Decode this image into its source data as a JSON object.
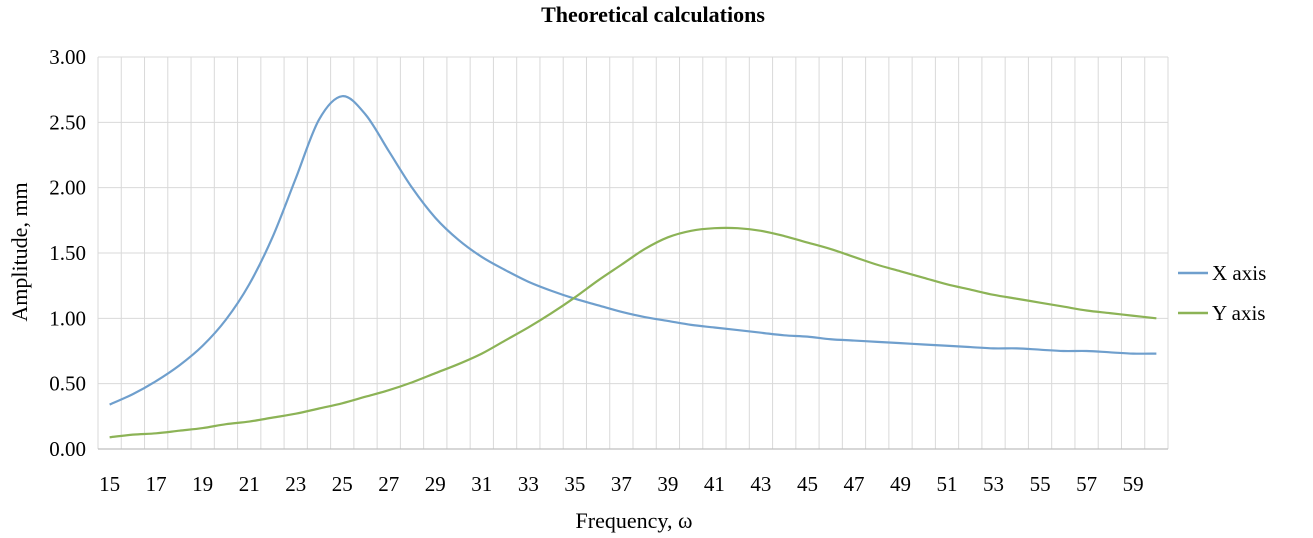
{
  "chart_data": {
    "type": "line",
    "title": "Theoretical calculations",
    "xlabel": "Frequency, ω",
    "ylabel": "Amplitude, mm",
    "xlim": [
      15,
      60
    ],
    "ylim": [
      0,
      3
    ],
    "x_ticks": [
      15,
      17,
      19,
      21,
      23,
      25,
      27,
      29,
      31,
      33,
      35,
      37,
      39,
      41,
      43,
      45,
      47,
      49,
      51,
      53,
      55,
      57,
      59
    ],
    "y_ticks": [
      "0.00",
      "0.50",
      "1.00",
      "1.50",
      "2.00",
      "2.50",
      "3.00"
    ],
    "grid": true,
    "legend_position": "right",
    "x": [
      15,
      16,
      17,
      18,
      19,
      20,
      21,
      22,
      23,
      24,
      25,
      26,
      27,
      28,
      29,
      30,
      31,
      32,
      33,
      34,
      35,
      36,
      37,
      38,
      39,
      40,
      41,
      42,
      43,
      44,
      45,
      46,
      47,
      48,
      49,
      50,
      51,
      52,
      53,
      54,
      55,
      56,
      57,
      58,
      59,
      60
    ],
    "series": [
      {
        "name": "X axis",
        "color": "#6f9fcd",
        "values": [
          0.34,
          0.42,
          0.52,
          0.64,
          0.79,
          0.99,
          1.26,
          1.62,
          2.07,
          2.52,
          2.7,
          2.56,
          2.28,
          2.0,
          1.77,
          1.6,
          1.47,
          1.37,
          1.28,
          1.21,
          1.15,
          1.1,
          1.05,
          1.01,
          0.98,
          0.95,
          0.93,
          0.91,
          0.89,
          0.87,
          0.86,
          0.84,
          0.83,
          0.82,
          0.81,
          0.8,
          0.79,
          0.78,
          0.77,
          0.77,
          0.76,
          0.75,
          0.75,
          0.74,
          0.73,
          0.73
        ]
      },
      {
        "name": "Y axis",
        "color": "#8cb356",
        "values": [
          0.09,
          0.11,
          0.12,
          0.14,
          0.16,
          0.19,
          0.21,
          0.24,
          0.27,
          0.31,
          0.35,
          0.4,
          0.45,
          0.51,
          0.58,
          0.65,
          0.73,
          0.83,
          0.93,
          1.04,
          1.16,
          1.29,
          1.41,
          1.53,
          1.62,
          1.67,
          1.69,
          1.69,
          1.67,
          1.63,
          1.58,
          1.53,
          1.47,
          1.41,
          1.36,
          1.31,
          1.26,
          1.22,
          1.18,
          1.15,
          1.12,
          1.09,
          1.06,
          1.04,
          1.02,
          1.0
        ]
      }
    ]
  }
}
